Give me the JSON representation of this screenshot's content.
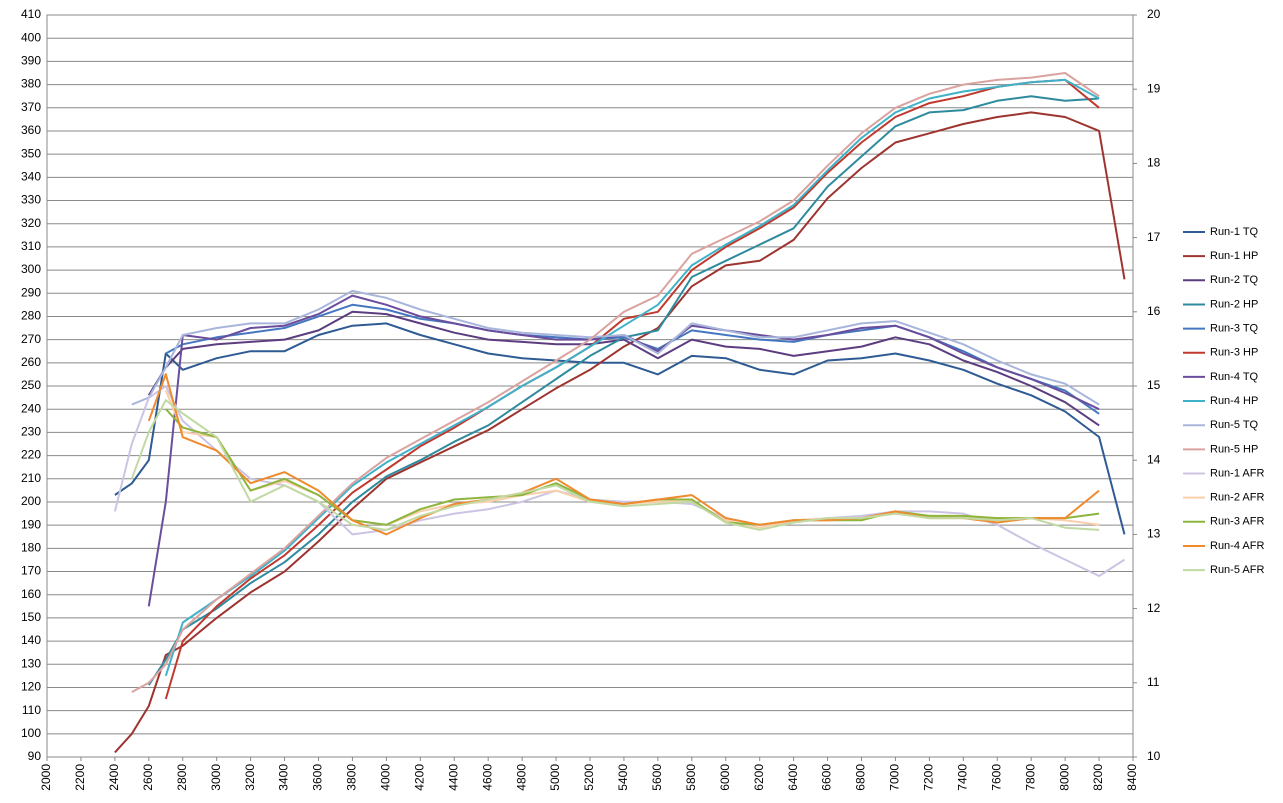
{
  "chart_data": {
    "type": "line",
    "x": [
      2400,
      2500,
      2600,
      2700,
      2800,
      3000,
      3200,
      3400,
      3600,
      3800,
      4000,
      4200,
      4400,
      4600,
      4800,
      5000,
      5200,
      5400,
      5600,
      5800,
      6000,
      6200,
      6400,
      6600,
      6800,
      7000,
      7200,
      7400,
      7600,
      7800,
      8000,
      8200,
      8350
    ],
    "xlim": [
      2000,
      8400
    ],
    "xticks": [
      2000,
      2200,
      2400,
      2600,
      2800,
      3000,
      3200,
      3400,
      3600,
      3800,
      4000,
      4200,
      4400,
      4600,
      4800,
      5000,
      5200,
      5400,
      5600,
      5800,
      6000,
      6200,
      6400,
      6600,
      6800,
      7000,
      7200,
      7400,
      7600,
      7800,
      8000,
      8200,
      8400
    ],
    "ylim": [
      90,
      410
    ],
    "yticks": [
      90,
      100,
      110,
      120,
      130,
      140,
      150,
      160,
      170,
      180,
      190,
      200,
      210,
      220,
      230,
      240,
      250,
      260,
      270,
      280,
      290,
      300,
      310,
      320,
      330,
      340,
      350,
      360,
      370,
      380,
      390,
      400,
      410
    ],
    "y2lim": [
      10,
      20
    ],
    "y2ticks": [
      10,
      11,
      12,
      13,
      14,
      15,
      16,
      17,
      18,
      19,
      20
    ],
    "grid": true,
    "legend": "right",
    "series": [
      {
        "name": "Run-1 TQ",
        "color": "#2e5b93",
        "values": [
          203,
          208,
          218,
          264,
          257,
          262,
          265,
          265,
          272,
          276,
          277,
          272,
          268,
          264,
          262,
          261,
          260,
          260,
          255,
          263,
          262,
          257,
          255,
          261,
          262,
          264,
          261,
          257,
          251,
          246,
          239,
          228,
          186
        ]
      },
      {
        "name": "Run-1 HP",
        "color": "#9e3430",
        "values": [
          92,
          100,
          112,
          134,
          138,
          150,
          161,
          170,
          183,
          197,
          210,
          217,
          224,
          231,
          240,
          249,
          257,
          267,
          275,
          293,
          302,
          304,
          313,
          331,
          344,
          355,
          359,
          363,
          366,
          368,
          366,
          360,
          296
        ]
      },
      {
        "name": "Run-2 TQ",
        "color": "#5c3d80",
        "values": [
          null,
          null,
          246,
          258,
          266,
          268,
          269,
          270,
          274,
          282,
          281,
          277,
          273,
          270,
          269,
          268,
          268,
          270,
          262,
          270,
          267,
          266,
          263,
          265,
          267,
          271,
          268,
          261,
          256,
          250,
          243,
          233,
          null
        ]
      },
      {
        "name": "Run-2 HP",
        "color": "#2e8b9e",
        "values": [
          null,
          null,
          121,
          132,
          145,
          154,
          165,
          174,
          186,
          200,
          211,
          218,
          226,
          233,
          243,
          253,
          263,
          271,
          274,
          297,
          304,
          311,
          318,
          336,
          349,
          362,
          368,
          369,
          373,
          375,
          373,
          374,
          null
        ]
      },
      {
        "name": "Run-3 TQ",
        "color": "#4577c0",
        "values": [
          null,
          null,
          null,
          264,
          268,
          271,
          273,
          275,
          280,
          285,
          283,
          279,
          277,
          274,
          272,
          271,
          270,
          271,
          266,
          274,
          272,
          270,
          269,
          272,
          274,
          276,
          271,
          265,
          258,
          253,
          248,
          238,
          null
        ]
      },
      {
        "name": "Run-3 HP",
        "color": "#c0392f",
        "values": [
          null,
          null,
          null,
          115,
          140,
          155,
          167,
          177,
          190,
          204,
          214,
          224,
          232,
          241,
          250,
          258,
          267,
          279,
          282,
          300,
          310,
          318,
          327,
          342,
          355,
          366,
          372,
          375,
          379,
          381,
          382,
          370,
          null
        ]
      },
      {
        "name": "Run-4 TQ",
        "color": "#6b4d9e",
        "values": [
          null,
          null,
          155,
          200,
          272,
          270,
          275,
          276,
          281,
          289,
          285,
          280,
          277,
          274,
          272,
          270,
          270,
          272,
          265,
          276,
          274,
          272,
          270,
          272,
          275,
          276,
          271,
          264,
          258,
          253,
          247,
          240,
          null
        ]
      },
      {
        "name": "Run-4 HP",
        "color": "#3fb2c9",
        "values": [
          null,
          null,
          null,
          125,
          148,
          158,
          168,
          179,
          193,
          207,
          217,
          225,
          233,
          241,
          250,
          258,
          267,
          276,
          285,
          302,
          311,
          319,
          328,
          343,
          357,
          368,
          374,
          377,
          379,
          381,
          382,
          374,
          null
        ]
      },
      {
        "name": "Run-5 TQ",
        "color": "#a9b6dc",
        "values": [
          null,
          242,
          245,
          258,
          272,
          275,
          277,
          277,
          283,
          291,
          288,
          283,
          279,
          275,
          273,
          272,
          271,
          272,
          264,
          277,
          274,
          271,
          271,
          274,
          277,
          278,
          273,
          268,
          261,
          255,
          251,
          242,
          null
        ]
      },
      {
        "name": "Run-5 HP",
        "color": "#daa3a0",
        "values": [
          null,
          118,
          122,
          130,
          145,
          158,
          169,
          180,
          194,
          208,
          219,
          227,
          235,
          243,
          252,
          261,
          270,
          282,
          289,
          307,
          314,
          321,
          330,
          345,
          359,
          370,
          376,
          380,
          382,
          383,
          385,
          375,
          null
        ]
      },
      {
        "name": "Run-1 AFR",
        "color": "#cdc4e4",
        "axis": "y2",
        "values": [
          13.31,
          14.22,
          14.84,
          15.0,
          14.53,
          14.13,
          13.75,
          13.66,
          13.44,
          13.0,
          13.06,
          13.19,
          13.28,
          13.34,
          13.44,
          13.59,
          13.47,
          13.44,
          13.44,
          13.41,
          13.22,
          13.13,
          13.16,
          13.22,
          13.25,
          13.31,
          13.31,
          13.28,
          13.13,
          12.88,
          12.66,
          12.44,
          12.66
        ]
      },
      {
        "name": "Run-2 AFR",
        "color": "#f9cfac",
        "axis": "y2",
        "values": [
          null,
          null,
          null,
          14.94,
          14.38,
          14.31,
          13.59,
          13.72,
          13.53,
          13.19,
          13.13,
          13.31,
          13.41,
          13.44,
          13.53,
          13.59,
          13.44,
          13.41,
          13.44,
          13.44,
          13.19,
          13.09,
          13.19,
          13.22,
          13.22,
          13.28,
          13.25,
          13.22,
          13.22,
          13.22,
          13.19,
          13.13,
          null
        ]
      },
      {
        "name": "Run-3 AFR",
        "color": "#8db53e",
        "axis": "y2",
        "values": [
          null,
          null,
          null,
          14.69,
          14.44,
          14.31,
          13.59,
          13.75,
          13.53,
          13.19,
          13.13,
          13.34,
          13.47,
          13.5,
          13.53,
          13.69,
          13.47,
          13.41,
          13.47,
          13.47,
          13.16,
          13.13,
          13.19,
          13.19,
          13.19,
          13.31,
          13.25,
          13.25,
          13.22,
          13.22,
          13.22,
          13.28,
          null
        ]
      },
      {
        "name": "Run-4 AFR",
        "color": "#f08a2e",
        "axis": "y2",
        "values": [
          null,
          null,
          14.53,
          15.16,
          14.31,
          14.13,
          13.69,
          13.84,
          13.59,
          13.19,
          13.0,
          13.22,
          13.41,
          13.47,
          13.56,
          13.75,
          13.47,
          13.41,
          13.47,
          13.53,
          13.22,
          13.13,
          13.19,
          13.19,
          13.22,
          13.31,
          13.22,
          13.22,
          13.16,
          13.22,
          13.22,
          13.59,
          null
        ]
      },
      {
        "name": "Run-5 AFR",
        "color": "#c1d9a2",
        "axis": "y2",
        "values": [
          null,
          13.75,
          14.38,
          14.81,
          14.63,
          14.31,
          13.44,
          13.66,
          13.44,
          13.13,
          13.06,
          13.25,
          13.38,
          13.47,
          13.56,
          13.66,
          13.44,
          13.38,
          13.41,
          13.44,
          13.16,
          13.06,
          13.16,
          13.22,
          13.22,
          13.28,
          13.22,
          13.22,
          13.19,
          13.22,
          13.09,
          13.06,
          null
        ]
      }
    ]
  }
}
